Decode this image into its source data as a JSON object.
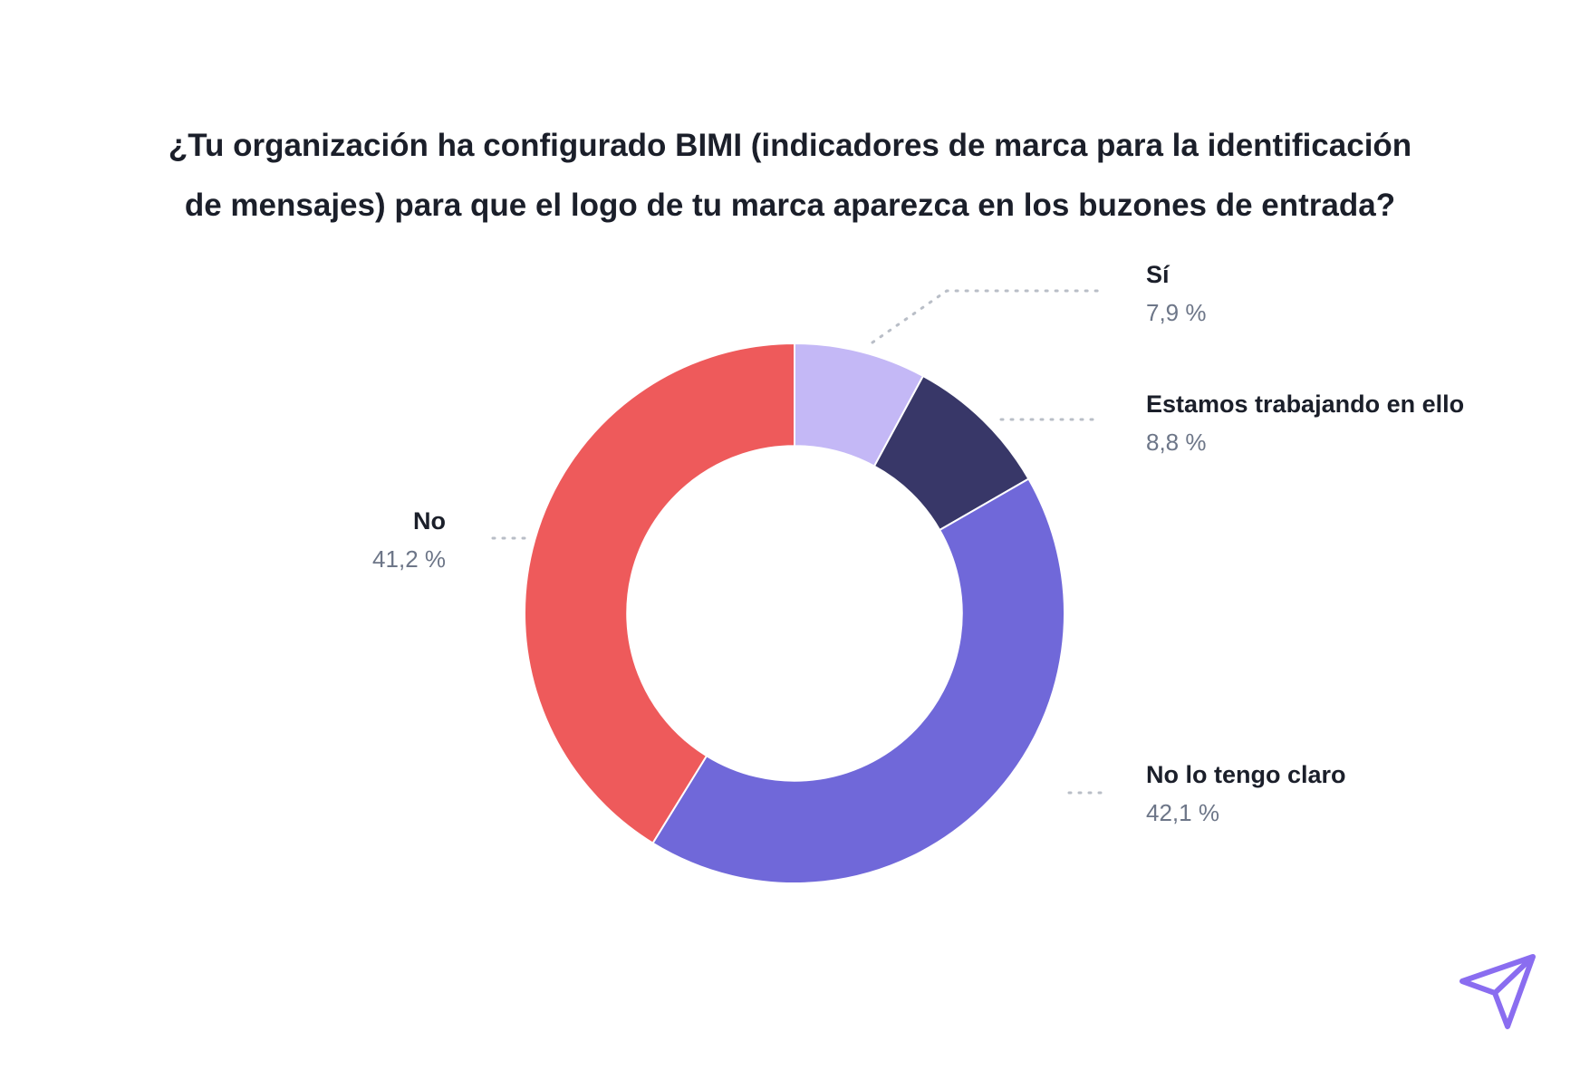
{
  "chart_data": {
    "type": "pie",
    "title_lines": [
      "¿Tu organización ha configurado BIMI (indicadores de marca para la identificación",
      "de mensajes) para que el logo de tu marca aparezca en los buzones de entrada?"
    ],
    "slices": [
      {
        "label": "Sí",
        "value": 7.9,
        "value_label": "7,9 %",
        "color": "#c4b8f6"
      },
      {
        "label": "Estamos trabajando en ello",
        "value": 8.8,
        "value_label": "8,8 %",
        "color": "#383768"
      },
      {
        "label": "No lo tengo claro",
        "value": 42.1,
        "value_label": "42,1 %",
        "color": "#7068d9"
      },
      {
        "label": "No",
        "value": 41.2,
        "value_label": "41,2 %",
        "color": "#ee5a5b"
      }
    ],
    "inner_radius_ratio": 0.62,
    "legend": "none"
  },
  "logo": {
    "name": "paper-plane-logo",
    "color": "#8a6df0"
  }
}
